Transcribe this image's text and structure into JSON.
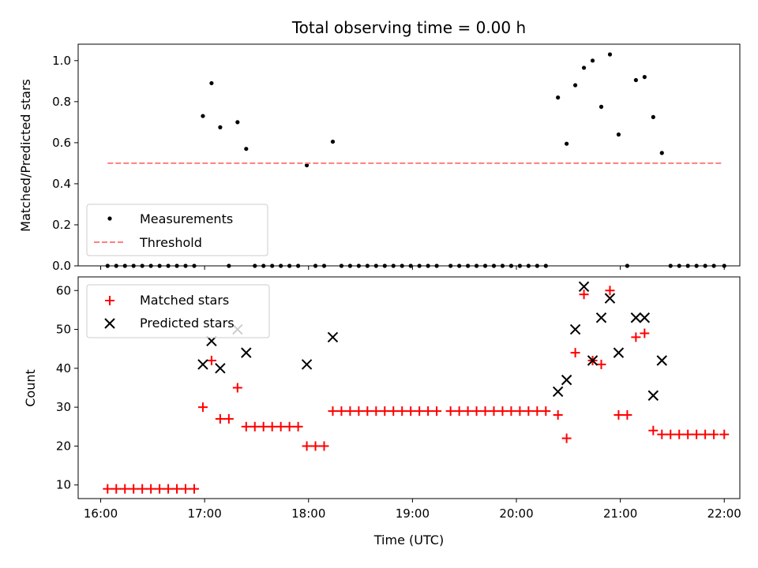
{
  "chart_data": {
    "title": "Total observing time = 0.00 h",
    "xlabel": "Time (UTC)",
    "x_ticks": [
      "16:00",
      "17:00",
      "18:00",
      "19:00",
      "20:00",
      "21:00",
      "22:00"
    ],
    "x_range": [
      "15:47",
      "22:09"
    ],
    "panels": [
      {
        "type": "scatter",
        "ylabel": "Matched/Predicted stars",
        "ylim": [
          0.0,
          1.08
        ],
        "y_ticks": [
          "0.0",
          "0.2",
          "0.4",
          "0.6",
          "0.8",
          "1.0"
        ],
        "legend_position": "lower-left",
        "series": [
          {
            "name": "Measurements",
            "marker": "dot",
            "color": "#000000",
            "points": [
              [
                "16:04",
                0
              ],
              [
                "16:09",
                0
              ],
              [
                "16:14",
                0
              ],
              [
                "16:19",
                0
              ],
              [
                "16:24",
                0
              ],
              [
                "16:29",
                0
              ],
              [
                "16:34",
                0
              ],
              [
                "16:39",
                0
              ],
              [
                "16:44",
                0
              ],
              [
                "16:49",
                0
              ],
              [
                "16:54",
                0
              ],
              [
                "16:59",
                0.73
              ],
              [
                "17:04",
                0.89
              ],
              [
                "17:09",
                0.675
              ],
              [
                "17:14",
                0
              ],
              [
                "17:19",
                0.7
              ],
              [
                "17:24",
                0.57
              ],
              [
                "17:29",
                0
              ],
              [
                "17:34",
                0
              ],
              [
                "17:39",
                0
              ],
              [
                "17:44",
                0
              ],
              [
                "17:49",
                0
              ],
              [
                "17:54",
                0
              ],
              [
                "17:59",
                0.49
              ],
              [
                "18:04",
                0
              ],
              [
                "18:09",
                0
              ],
              [
                "18:14",
                0.605
              ],
              [
                "18:19",
                0
              ],
              [
                "18:24",
                0
              ],
              [
                "18:29",
                0
              ],
              [
                "18:34",
                0
              ],
              [
                "18:39",
                0
              ],
              [
                "18:44",
                0
              ],
              [
                "18:49",
                0
              ],
              [
                "18:54",
                0
              ],
              [
                "18:59",
                0
              ],
              [
                "19:04",
                0
              ],
              [
                "19:09",
                0
              ],
              [
                "19:14",
                0
              ],
              [
                "19:22",
                0
              ],
              [
                "19:27",
                0
              ],
              [
                "19:32",
                0
              ],
              [
                "19:37",
                0
              ],
              [
                "19:42",
                0
              ],
              [
                "19:47",
                0
              ],
              [
                "19:52",
                0
              ],
              [
                "19:57",
                0
              ],
              [
                "20:02",
                0
              ],
              [
                "20:07",
                0
              ],
              [
                "20:12",
                0
              ],
              [
                "20:17",
                0
              ],
              [
                "20:24",
                0.82
              ],
              [
                "20:29",
                0.595
              ],
              [
                "20:34",
                0.88
              ],
              [
                "20:39",
                0.965
              ],
              [
                "20:44",
                1.0
              ],
              [
                "20:49",
                0.775
              ],
              [
                "20:54",
                1.03
              ],
              [
                "20:59",
                0.64
              ],
              [
                "21:04",
                0
              ],
              [
                "21:09",
                0.905
              ],
              [
                "21:14",
                0.92
              ],
              [
                "21:19",
                0.725
              ],
              [
                "21:24",
                0.55
              ],
              [
                "21:29",
                0
              ],
              [
                "21:34",
                0
              ],
              [
                "21:39",
                0
              ],
              [
                "21:44",
                0
              ],
              [
                "21:49",
                0
              ],
              [
                "21:54",
                0
              ],
              [
                "22:00",
                0
              ]
            ]
          },
          {
            "name": "Threshold",
            "type": "line",
            "style": "dashed",
            "color": "#ff7f7f",
            "points": [
              [
                "16:04",
                0.5
              ],
              [
                "21:59",
                0.5
              ]
            ]
          }
        ]
      },
      {
        "type": "scatter",
        "ylabel": "Count",
        "ylim": [
          6.5,
          63.5
        ],
        "y_ticks": [
          "10",
          "20",
          "30",
          "40",
          "50",
          "60"
        ],
        "legend_position": "upper-left",
        "series": [
          {
            "name": "Matched stars",
            "marker": "plus",
            "color": "#ff0000",
            "points": [
              [
                "16:04",
                9
              ],
              [
                "16:09",
                9
              ],
              [
                "16:14",
                9
              ],
              [
                "16:19",
                9
              ],
              [
                "16:24",
                9
              ],
              [
                "16:29",
                9
              ],
              [
                "16:34",
                9
              ],
              [
                "16:39",
                9
              ],
              [
                "16:44",
                9
              ],
              [
                "16:49",
                9
              ],
              [
                "16:54",
                9
              ],
              [
                "16:59",
                30
              ],
              [
                "17:04",
                42
              ],
              [
                "17:09",
                27
              ],
              [
                "17:14",
                27
              ],
              [
                "17:19",
                35
              ],
              [
                "17:24",
                25
              ],
              [
                "17:29",
                25
              ],
              [
                "17:34",
                25
              ],
              [
                "17:39",
                25
              ],
              [
                "17:44",
                25
              ],
              [
                "17:49",
                25
              ],
              [
                "17:54",
                25
              ],
              [
                "17:59",
                20
              ],
              [
                "18:04",
                20
              ],
              [
                "18:09",
                20
              ],
              [
                "18:14",
                29
              ],
              [
                "18:19",
                29
              ],
              [
                "18:24",
                29
              ],
              [
                "18:29",
                29
              ],
              [
                "18:34",
                29
              ],
              [
                "18:39",
                29
              ],
              [
                "18:44",
                29
              ],
              [
                "18:49",
                29
              ],
              [
                "18:54",
                29
              ],
              [
                "18:59",
                29
              ],
              [
                "19:04",
                29
              ],
              [
                "19:09",
                29
              ],
              [
                "19:14",
                29
              ],
              [
                "19:22",
                29
              ],
              [
                "19:27",
                29
              ],
              [
                "19:32",
                29
              ],
              [
                "19:37",
                29
              ],
              [
                "19:42",
                29
              ],
              [
                "19:47",
                29
              ],
              [
                "19:52",
                29
              ],
              [
                "19:57",
                29
              ],
              [
                "20:02",
                29
              ],
              [
                "20:07",
                29
              ],
              [
                "20:12",
                29
              ],
              [
                "20:17",
                29
              ],
              [
                "20:24",
                28
              ],
              [
                "20:29",
                22
              ],
              [
                "20:34",
                44
              ],
              [
                "20:39",
                59
              ],
              [
                "20:44",
                42
              ],
              [
                "20:49",
                41
              ],
              [
                "20:54",
                60
              ],
              [
                "20:59",
                28
              ],
              [
                "21:04",
                28
              ],
              [
                "21:09",
                48
              ],
              [
                "21:14",
                49
              ],
              [
                "21:19",
                24
              ],
              [
                "21:24",
                23
              ],
              [
                "21:29",
                23
              ],
              [
                "21:34",
                23
              ],
              [
                "21:39",
                23
              ],
              [
                "21:44",
                23
              ],
              [
                "21:49",
                23
              ],
              [
                "21:54",
                23
              ],
              [
                "22:00",
                23
              ]
            ]
          },
          {
            "name": "Predicted stars",
            "marker": "x",
            "color": "#000000",
            "points": [
              [
                "16:59",
                41
              ],
              [
                "17:04",
                47
              ],
              [
                "17:09",
                40
              ],
              [
                "17:19",
                50
              ],
              [
                "17:24",
                44
              ],
              [
                "17:59",
                41
              ],
              [
                "18:14",
                48
              ],
              [
                "20:24",
                34
              ],
              [
                "20:29",
                37
              ],
              [
                "20:34",
                50
              ],
              [
                "20:39",
                61
              ],
              [
                "20:44",
                42
              ],
              [
                "20:49",
                53
              ],
              [
                "20:54",
                58
              ],
              [
                "20:59",
                44
              ],
              [
                "21:09",
                53
              ],
              [
                "21:14",
                53
              ],
              [
                "21:19",
                33
              ],
              [
                "21:24",
                42
              ]
            ]
          }
        ]
      }
    ]
  }
}
